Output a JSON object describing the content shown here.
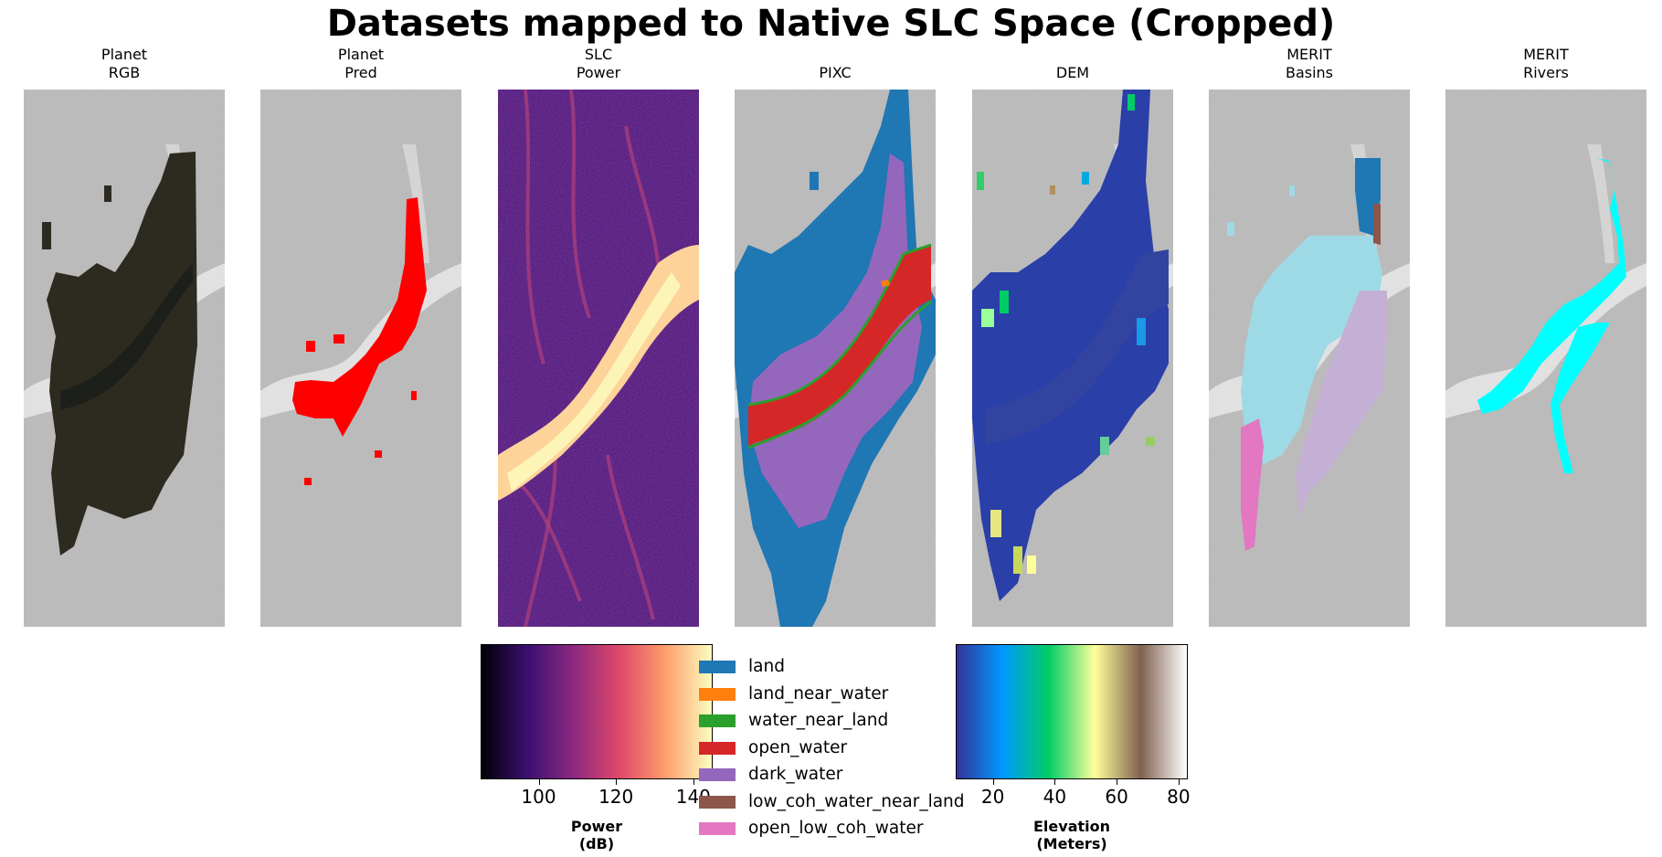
{
  "figure": {
    "title": "Datasets mapped to Native SLC Space (Cropped)",
    "panels": [
      {
        "id": "planet-rgb",
        "title": "Planet\nRGB"
      },
      {
        "id": "planet-pred",
        "title": "Planet\nPred"
      },
      {
        "id": "slc-power",
        "title": "SLC\nPower"
      },
      {
        "id": "pixc",
        "title": "PIXC"
      },
      {
        "id": "dem",
        "title": "DEM"
      },
      {
        "id": "merit-basins",
        "title": "MERIT\nBasins"
      },
      {
        "id": "merit-rivers",
        "title": "MERIT\nRivers"
      }
    ]
  },
  "colorbars": {
    "power": {
      "label": "Power\n(dB)",
      "ticks": [
        "100",
        "120",
        "140"
      ],
      "tick_values": [
        100,
        120,
        140
      ],
      "range": [
        85,
        145
      ],
      "colormap": "magma",
      "colors": [
        "#000004",
        "#3b0f70",
        "#8c2981",
        "#de4968",
        "#fe9f6d",
        "#fcfdbf"
      ]
    },
    "elevation": {
      "label": "Elevation\n(Meters)",
      "ticks": [
        "20",
        "40",
        "60",
        "80"
      ],
      "tick_values": [
        20,
        40,
        60,
        80
      ],
      "range": [
        8,
        83
      ],
      "colormap": "terrain",
      "colors": [
        "#333399",
        "#0099ff",
        "#00cc66",
        "#ffff99",
        "#806050",
        "#ffffff"
      ]
    }
  },
  "legend": {
    "items": [
      {
        "label": "land",
        "color": "#1f77b4"
      },
      {
        "label": "land_near_water",
        "color": "#ff7f0e"
      },
      {
        "label": "water_near_land",
        "color": "#2ca02c"
      },
      {
        "label": "open_water",
        "color": "#d62728"
      },
      {
        "label": "dark_water",
        "color": "#9467bd"
      },
      {
        "label": "low_coh_water_near_land",
        "color": "#8c564b"
      },
      {
        "label": "open_low_coh_water",
        "color": "#e377c2"
      }
    ]
  },
  "overlay_colors": {
    "planet_pred": "#ff0000",
    "merit_basins": [
      "#9edae5",
      "#c5b0d5",
      "#1f77b4",
      "#8c564b",
      "#e377c2",
      "#17becf"
    ],
    "merit_rivers": "#00ffff",
    "planet_rgb_dark": "#2d2a20"
  }
}
